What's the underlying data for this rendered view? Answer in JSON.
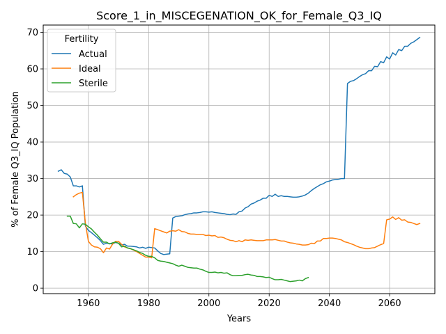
{
  "chart_data": {
    "type": "line",
    "title": "Score_1_in_MISCEGENATION_OK_for_Female_Q3_IQ",
    "xlabel": "Years",
    "ylabel": "% of Female Q3_IQ Population",
    "xlim": [
      1945,
      2075
    ],
    "ylim": [
      -1.5,
      72
    ],
    "xticks": [
      1960,
      1980,
      2000,
      2020,
      2040,
      2060
    ],
    "yticks": [
      0,
      10,
      20,
      30,
      40,
      50,
      60,
      70
    ],
    "grid": true,
    "legend": {
      "title": "Fertility",
      "placement": "top-left"
    },
    "series": [
      {
        "name": "Actual",
        "color": "#1f77b4",
        "points": [
          [
            1950,
            32.0
          ],
          [
            1951,
            32.4
          ],
          [
            1952,
            31.4
          ],
          [
            1953,
            31.2
          ],
          [
            1954,
            30.4
          ],
          [
            1955,
            28.0
          ],
          [
            1956,
            28.0
          ],
          [
            1957,
            27.7
          ],
          [
            1958,
            28.0
          ],
          [
            1959,
            17.0
          ],
          [
            1960,
            15.8
          ],
          [
            1961,
            15.2
          ],
          [
            1962,
            14.5
          ],
          [
            1963,
            13.8
          ],
          [
            1964,
            13.0
          ],
          [
            1965,
            12.0
          ],
          [
            1966,
            12.3
          ],
          [
            1967,
            12.2
          ],
          [
            1968,
            12.1
          ],
          [
            1969,
            12.5
          ],
          [
            1970,
            12.3
          ],
          [
            1971,
            11.8
          ],
          [
            1972,
            12.0
          ],
          [
            1973,
            11.5
          ],
          [
            1974,
            11.5
          ],
          [
            1975,
            11.4
          ],
          [
            1976,
            11.3
          ],
          [
            1977,
            11.0
          ],
          [
            1978,
            11.2
          ],
          [
            1979,
            10.9
          ],
          [
            1980,
            11.2
          ],
          [
            1981,
            11.1
          ],
          [
            1982,
            11.0
          ],
          [
            1983,
            10.2
          ],
          [
            1984,
            9.5
          ],
          [
            1985,
            9.2
          ],
          [
            1986,
            9.3
          ],
          [
            1987,
            9.4
          ],
          [
            1988,
            19.2
          ],
          [
            1989,
            19.6
          ],
          [
            1990,
            19.7
          ],
          [
            1991,
            19.8
          ],
          [
            1992,
            20.1
          ],
          [
            1993,
            20.3
          ],
          [
            1994,
            20.4
          ],
          [
            1995,
            20.6
          ],
          [
            1996,
            20.6
          ],
          [
            1997,
            20.7
          ],
          [
            1998,
            20.9
          ],
          [
            1999,
            20.9
          ],
          [
            2000,
            20.8
          ],
          [
            2001,
            20.9
          ],
          [
            2002,
            20.7
          ],
          [
            2003,
            20.6
          ],
          [
            2004,
            20.5
          ],
          [
            2005,
            20.4
          ],
          [
            2006,
            20.2
          ],
          [
            2007,
            20.1
          ],
          [
            2008,
            20.3
          ],
          [
            2009,
            20.2
          ],
          [
            2010,
            20.9
          ],
          [
            2011,
            21.1
          ],
          [
            2012,
            21.9
          ],
          [
            2013,
            22.3
          ],
          [
            2014,
            23.0
          ],
          [
            2015,
            23.3
          ],
          [
            2016,
            23.8
          ],
          [
            2017,
            24.1
          ],
          [
            2018,
            24.6
          ],
          [
            2019,
            24.6
          ],
          [
            2020,
            25.4
          ],
          [
            2021,
            25.1
          ],
          [
            2022,
            25.7
          ],
          [
            2023,
            25.1
          ],
          [
            2024,
            25.3
          ],
          [
            2025,
            25.1
          ],
          [
            2026,
            25.1
          ],
          [
            2027,
            25.0
          ],
          [
            2028,
            24.9
          ],
          [
            2029,
            24.9
          ],
          [
            2030,
            25.0
          ],
          [
            2031,
            25.2
          ],
          [
            2032,
            25.5
          ],
          [
            2033,
            26.0
          ],
          [
            2034,
            26.7
          ],
          [
            2035,
            27.3
          ],
          [
            2036,
            27.8
          ],
          [
            2037,
            28.3
          ],
          [
            2038,
            28.6
          ],
          [
            2039,
            29.1
          ],
          [
            2040,
            29.3
          ],
          [
            2041,
            29.6
          ],
          [
            2042,
            29.7
          ],
          [
            2043,
            29.8
          ],
          [
            2044,
            30.0
          ],
          [
            2045,
            30.0
          ],
          [
            2046,
            56.0
          ],
          [
            2047,
            56.6
          ],
          [
            2048,
            56.8
          ],
          [
            2049,
            57.3
          ],
          [
            2050,
            57.9
          ],
          [
            2051,
            58.4
          ],
          [
            2052,
            58.7
          ],
          [
            2053,
            59.5
          ],
          [
            2054,
            59.5
          ],
          [
            2055,
            60.7
          ],
          [
            2056,
            60.6
          ],
          [
            2057,
            62.0
          ],
          [
            2058,
            61.7
          ],
          [
            2059,
            63.3
          ],
          [
            2060,
            62.7
          ],
          [
            2061,
            64.4
          ],
          [
            2062,
            63.8
          ],
          [
            2063,
            65.3
          ],
          [
            2064,
            65.0
          ],
          [
            2065,
            66.2
          ],
          [
            2066,
            66.2
          ],
          [
            2067,
            67.0
          ],
          [
            2068,
            67.4
          ],
          [
            2069,
            68.0
          ],
          [
            2070,
            68.6
          ]
        ]
      },
      {
        "name": "Ideal",
        "color": "#ff7f0e",
        "points": [
          [
            1955,
            25.0
          ],
          [
            1956,
            25.6
          ],
          [
            1957,
            26.0
          ],
          [
            1958,
            26.2
          ],
          [
            1959,
            17.8
          ],
          [
            1960,
            12.8
          ],
          [
            1961,
            11.8
          ],
          [
            1962,
            11.3
          ],
          [
            1963,
            11.2
          ],
          [
            1964,
            10.8
          ],
          [
            1965,
            9.7
          ],
          [
            1966,
            11.0
          ],
          [
            1967,
            10.7
          ],
          [
            1968,
            12.0
          ],
          [
            1969,
            12.8
          ],
          [
            1970,
            12.8
          ],
          [
            1971,
            12.0
          ],
          [
            1972,
            11.3
          ],
          [
            1973,
            11.0
          ],
          [
            1974,
            10.8
          ],
          [
            1975,
            10.4
          ],
          [
            1976,
            10.0
          ],
          [
            1977,
            9.5
          ],
          [
            1978,
            9.0
          ],
          [
            1979,
            8.5
          ],
          [
            1980,
            8.5
          ],
          [
            1981,
            8.3
          ],
          [
            1982,
            16.3
          ],
          [
            1983,
            16.0
          ],
          [
            1984,
            15.7
          ],
          [
            1985,
            15.4
          ],
          [
            1986,
            15.1
          ],
          [
            1987,
            15.6
          ],
          [
            1988,
            15.7
          ],
          [
            1989,
            15.6
          ],
          [
            1990,
            16.0
          ],
          [
            1991,
            15.5
          ],
          [
            1992,
            15.4
          ],
          [
            1993,
            15.0
          ],
          [
            1994,
            14.8
          ],
          [
            1995,
            14.8
          ],
          [
            1996,
            14.7
          ],
          [
            1997,
            14.7
          ],
          [
            1998,
            14.7
          ],
          [
            1999,
            14.4
          ],
          [
            2000,
            14.5
          ],
          [
            2001,
            14.3
          ],
          [
            2002,
            14.4
          ],
          [
            2003,
            13.9
          ],
          [
            2004,
            14.0
          ],
          [
            2005,
            13.8
          ],
          [
            2006,
            13.4
          ],
          [
            2007,
            13.1
          ],
          [
            2008,
            13.0
          ],
          [
            2009,
            12.7
          ],
          [
            2010,
            13.0
          ],
          [
            2011,
            12.7
          ],
          [
            2012,
            13.2
          ],
          [
            2013,
            13.1
          ],
          [
            2014,
            13.2
          ],
          [
            2015,
            13.1
          ],
          [
            2016,
            13.0
          ],
          [
            2017,
            13.0
          ],
          [
            2018,
            13.0
          ],
          [
            2019,
            13.2
          ],
          [
            2020,
            13.2
          ],
          [
            2021,
            13.2
          ],
          [
            2022,
            13.3
          ],
          [
            2023,
            13.1
          ],
          [
            2024,
            12.9
          ],
          [
            2025,
            12.9
          ],
          [
            2026,
            12.6
          ],
          [
            2027,
            12.4
          ],
          [
            2028,
            12.3
          ],
          [
            2029,
            12.1
          ],
          [
            2030,
            12.0
          ],
          [
            2031,
            11.8
          ],
          [
            2032,
            11.8
          ],
          [
            2033,
            11.9
          ],
          [
            2034,
            12.3
          ],
          [
            2035,
            12.2
          ],
          [
            2036,
            12.9
          ],
          [
            2037,
            12.9
          ],
          [
            2038,
            13.6
          ],
          [
            2039,
            13.6
          ],
          [
            2040,
            13.7
          ],
          [
            2041,
            13.7
          ],
          [
            2042,
            13.6
          ],
          [
            2043,
            13.4
          ],
          [
            2044,
            13.2
          ],
          [
            2045,
            12.7
          ],
          [
            2046,
            12.5
          ],
          [
            2047,
            12.2
          ],
          [
            2048,
            11.9
          ],
          [
            2049,
            11.5
          ],
          [
            2050,
            11.2
          ],
          [
            2051,
            11.0
          ],
          [
            2052,
            10.8
          ],
          [
            2053,
            10.8
          ],
          [
            2054,
            11.0
          ],
          [
            2055,
            11.1
          ],
          [
            2056,
            11.5
          ],
          [
            2057,
            11.9
          ],
          [
            2058,
            12.2
          ],
          [
            2059,
            18.7
          ],
          [
            2060,
            18.9
          ],
          [
            2061,
            19.5
          ],
          [
            2062,
            18.8
          ],
          [
            2063,
            19.3
          ],
          [
            2064,
            18.6
          ],
          [
            2065,
            18.7
          ],
          [
            2066,
            18.1
          ],
          [
            2067,
            18.0
          ],
          [
            2068,
            17.7
          ],
          [
            2069,
            17.4
          ],
          [
            2070,
            17.7
          ]
        ]
      },
      {
        "name": "Sterile",
        "color": "#2ca02c",
        "points": [
          [
            1953,
            19.7
          ],
          [
            1954,
            19.7
          ],
          [
            1955,
            17.7
          ],
          [
            1956,
            17.6
          ],
          [
            1957,
            16.5
          ],
          [
            1958,
            17.6
          ],
          [
            1959,
            17.5
          ],
          [
            1960,
            16.8
          ],
          [
            1961,
            16.2
          ],
          [
            1962,
            15.3
          ],
          [
            1963,
            14.5
          ],
          [
            1964,
            13.5
          ],
          [
            1965,
            12.6
          ],
          [
            1966,
            12.6
          ],
          [
            1967,
            12.1
          ],
          [
            1968,
            12.4
          ],
          [
            1969,
            12.6
          ],
          [
            1970,
            12.3
          ],
          [
            1971,
            11.3
          ],
          [
            1972,
            11.5
          ],
          [
            1973,
            11.0
          ],
          [
            1974,
            10.8
          ],
          [
            1975,
            10.5
          ],
          [
            1976,
            10.2
          ],
          [
            1977,
            9.8
          ],
          [
            1978,
            9.5
          ],
          [
            1979,
            9.0
          ],
          [
            1980,
            8.7
          ],
          [
            1981,
            8.7
          ],
          [
            1982,
            8.3
          ],
          [
            1983,
            7.6
          ],
          [
            1984,
            7.4
          ],
          [
            1985,
            7.3
          ],
          [
            1986,
            7.1
          ],
          [
            1987,
            6.9
          ],
          [
            1988,
            6.7
          ],
          [
            1989,
            6.3
          ],
          [
            1990,
            6.0
          ],
          [
            1991,
            6.3
          ],
          [
            1992,
            6.0
          ],
          [
            1993,
            5.7
          ],
          [
            1994,
            5.6
          ],
          [
            1995,
            5.5
          ],
          [
            1996,
            5.5
          ],
          [
            1997,
            5.2
          ],
          [
            1998,
            5.0
          ],
          [
            1999,
            4.6
          ],
          [
            2000,
            4.3
          ],
          [
            2001,
            4.3
          ],
          [
            2002,
            4.4
          ],
          [
            2003,
            4.2
          ],
          [
            2004,
            4.3
          ],
          [
            2005,
            4.1
          ],
          [
            2006,
            4.2
          ],
          [
            2007,
            3.7
          ],
          [
            2008,
            3.4
          ],
          [
            2009,
            3.4
          ],
          [
            2010,
            3.5
          ],
          [
            2011,
            3.5
          ],
          [
            2012,
            3.7
          ],
          [
            2013,
            3.8
          ],
          [
            2014,
            3.6
          ],
          [
            2015,
            3.5
          ],
          [
            2016,
            3.2
          ],
          [
            2017,
            3.2
          ],
          [
            2018,
            3.1
          ],
          [
            2019,
            2.9
          ],
          [
            2020,
            3.0
          ],
          [
            2021,
            2.6
          ],
          [
            2022,
            2.3
          ],
          [
            2023,
            2.3
          ],
          [
            2024,
            2.4
          ],
          [
            2025,
            2.2
          ],
          [
            2026,
            2.0
          ],
          [
            2027,
            1.8
          ],
          [
            2028,
            1.9
          ],
          [
            2029,
            2.0
          ],
          [
            2030,
            2.2
          ],
          [
            2031,
            2.0
          ],
          [
            2032,
            2.6
          ],
          [
            2033,
            2.9
          ]
        ]
      }
    ]
  }
}
